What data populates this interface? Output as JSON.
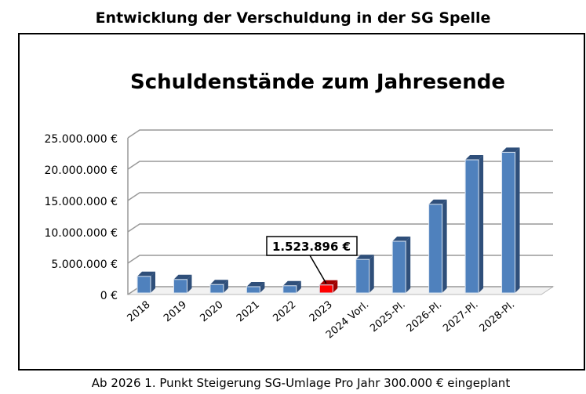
{
  "header": "Entwicklung der Verschuldung in der SG Spelle",
  "footer": "Ab 2026 1. Punkt Steigerung SG-Umlage Pro Jahr 300.000 € eingeplant",
  "chart_data": {
    "type": "bar",
    "title": "Schuldenstände zum Jahresende",
    "categories": [
      "2018",
      "2019",
      "2020",
      "2021",
      "2022",
      "2023",
      "2024 Vorl.",
      "2025-Pl.",
      "2026-Pl.",
      "2027-Pl.",
      "2028-Pl."
    ],
    "values": [
      2900000,
      2400000,
      1600000,
      1250000,
      1400000,
      1523896,
      5600000,
      8500000,
      14400000,
      21500000,
      22700000
    ],
    "highlight_index": 5,
    "annotation": "1.523.896 €",
    "ylim": [
      0,
      25000000
    ],
    "yticks": [
      0,
      5000000,
      10000000,
      15000000,
      20000000,
      25000000
    ],
    "ytick_labels": [
      "0 €",
      "5.000.000 €",
      "10.000.000 €",
      "15.000.000 €",
      "20.000.000 €",
      "25.000.000 €"
    ],
    "bar_color": "#4f81bd",
    "highlight_color": "#ff0000",
    "grid": true
  }
}
